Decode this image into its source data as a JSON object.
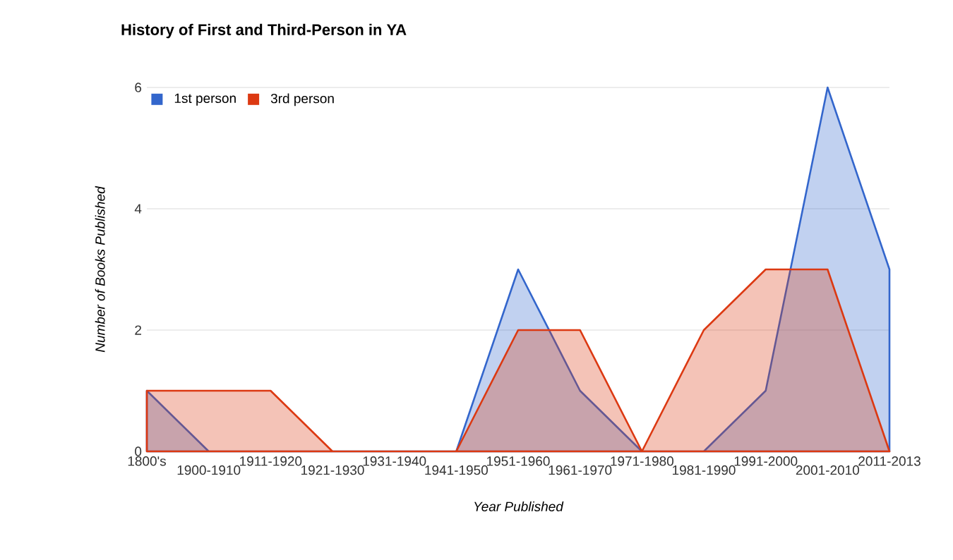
{
  "chart_data": {
    "type": "area",
    "title": "History of First and Third-Person in YA",
    "xlabel": "Year Published",
    "ylabel": "Number of Books Published",
    "categories": [
      "1800's",
      "1900-1910",
      "1911-1920",
      "1921-1930",
      "1931-1940",
      "1941-1950",
      "1951-1960",
      "1961-1970",
      "1971-1980",
      "1981-1990",
      "1991-2000",
      "2001-2010",
      "2011-2013"
    ],
    "series": [
      {
        "name": "1st person",
        "color": "#3366cc",
        "values": [
          1,
          0,
          0,
          0,
          0,
          0,
          3,
          1,
          0,
          0,
          1,
          6,
          3
        ]
      },
      {
        "name": "3rd person",
        "color": "#dc3912",
        "values": [
          1,
          1,
          1,
          0,
          0,
          0,
          2,
          2,
          0,
          2,
          3,
          3,
          0
        ]
      }
    ],
    "ylim": [
      0,
      6
    ],
    "yticks": [
      0,
      2,
      4,
      6
    ],
    "grid": "y",
    "legend": "top left"
  }
}
